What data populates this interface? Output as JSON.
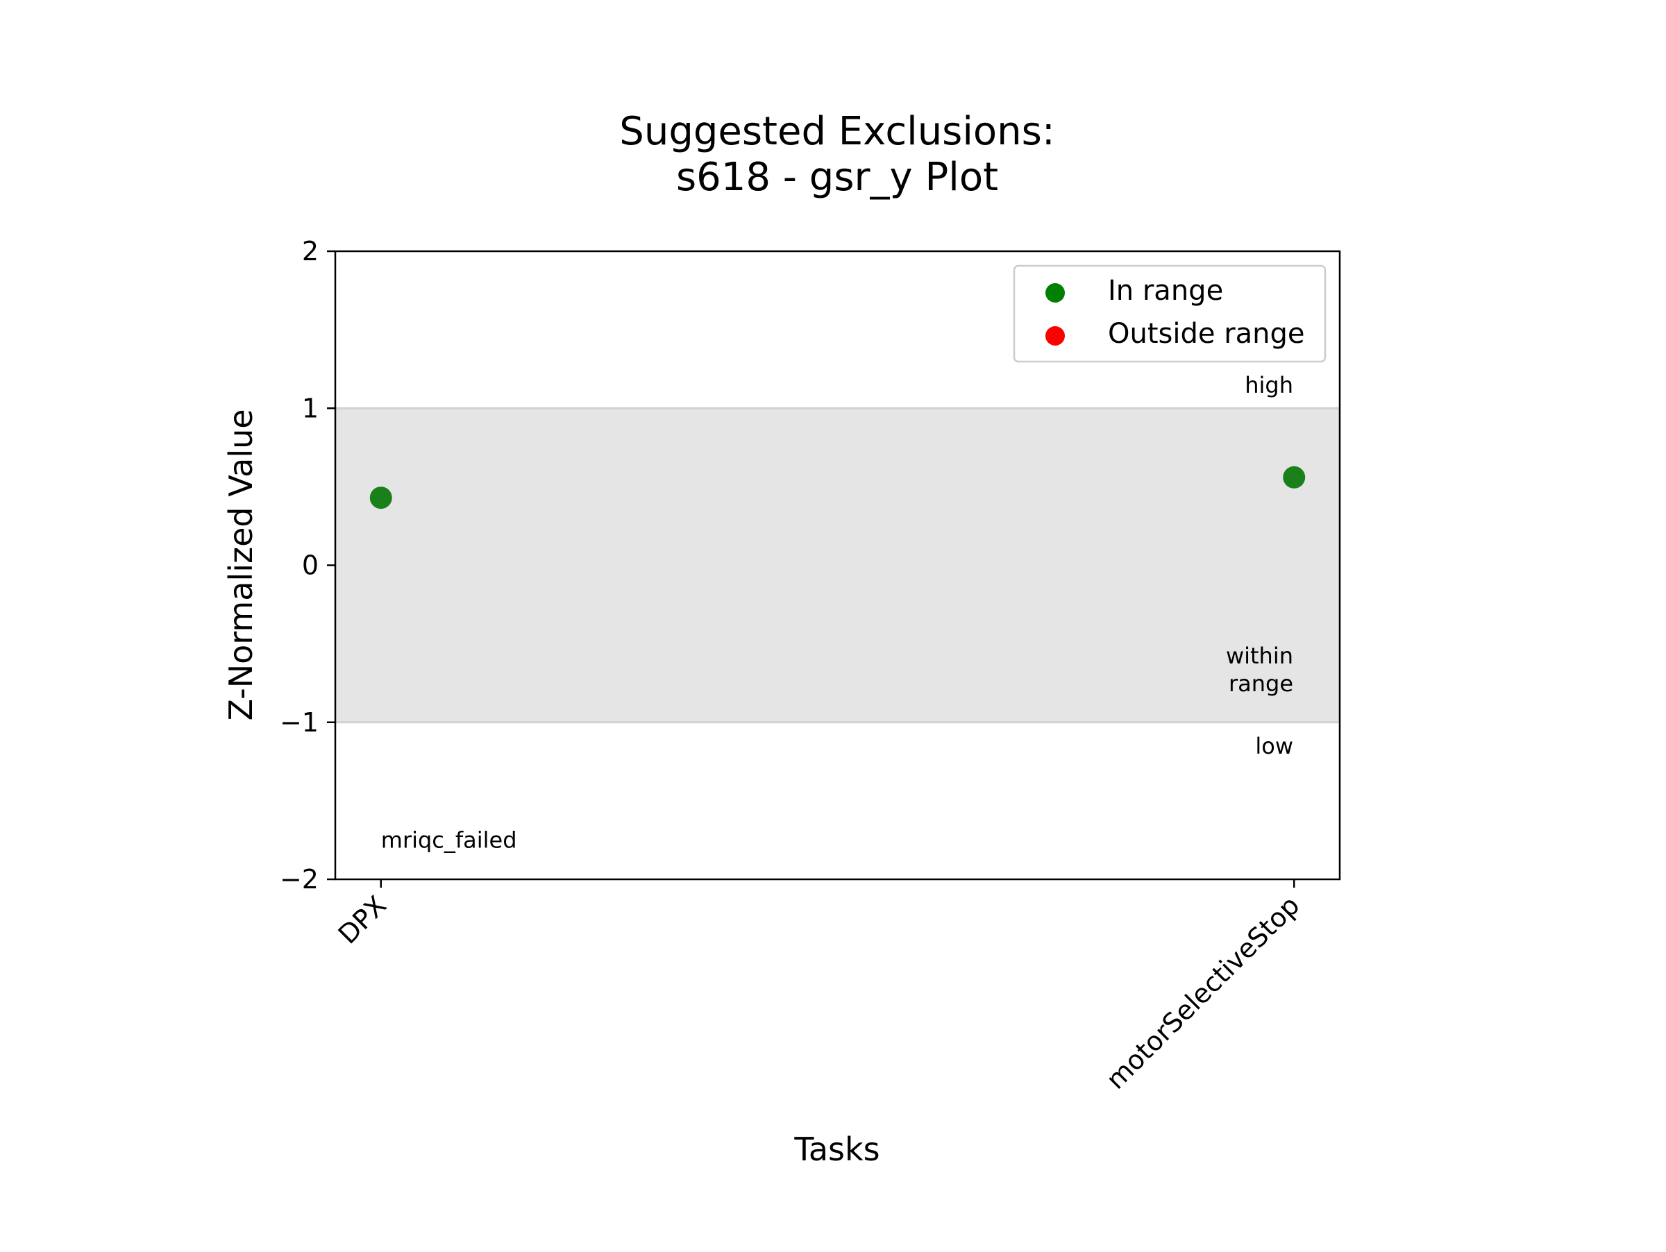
{
  "chart_data": {
    "type": "scatter",
    "title_lines": [
      "Suggested Exclusions:",
      "s618 - gsr_y Plot"
    ],
    "xlabel": "Tasks",
    "ylabel": "Z-Normalized Value",
    "ylim": [
      -2,
      2
    ],
    "yticks": [
      {
        "value": 2,
        "label": "2"
      },
      {
        "value": 1,
        "label": "1"
      },
      {
        "value": 0,
        "label": "0"
      },
      {
        "value": -1,
        "label": "−1"
      },
      {
        "value": -2,
        "label": "−2"
      }
    ],
    "categories": [
      "DPX",
      "motorSelectiveStop"
    ],
    "points": [
      {
        "category": "DPX",
        "value": 0.43,
        "status": "In range"
      },
      {
        "category": "motorSelectiveStop",
        "value": 0.56,
        "status": "In range"
      }
    ],
    "range_band": {
      "low": -1,
      "high": 1
    },
    "region_labels": {
      "high": "high",
      "within_line1": "within",
      "within_line2": "range",
      "low": "low"
    },
    "annotations": [
      {
        "text": "mriqc_failed",
        "category": "DPX",
        "value": -1.75
      }
    ],
    "legend": {
      "placement": "top-right",
      "entries": [
        {
          "label": "In range",
          "color": "#008000"
        },
        {
          "label": "Outside range",
          "color": "#ff0000"
        }
      ]
    },
    "colors": {
      "in_range": "#1a801a",
      "band": "#e5e5e5",
      "band_edge": "#d2d2d2"
    }
  }
}
